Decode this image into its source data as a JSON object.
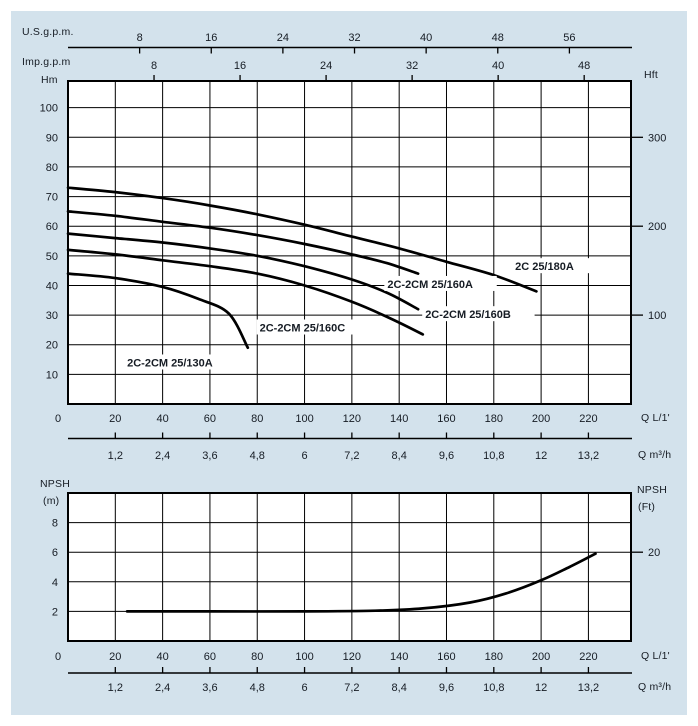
{
  "colors": {
    "panel_bg": "#d3e2ec",
    "plot_bg": "#ffffff",
    "line": "#000000",
    "text": "#161c24"
  },
  "labels": {
    "us_gpm": "U.S.g.p.m.",
    "imp_gpm": "Imp.g.p.m",
    "hm": "Hm",
    "hft": "Hft",
    "q_l1_top": "Q L/1'",
    "q_m3h_top": "Q m³/h",
    "npsh_left_1": "NPSH",
    "npsh_left_2": "(m)",
    "npsh_right_1": "NPSH",
    "npsh_right_2": "(Ft)",
    "q_l1_bottom": "Q L/1'",
    "q_m3h_bottom": "Q m³/h"
  },
  "chart_data": [
    {
      "type": "line",
      "title": "Pump head vs flow curves",
      "grid": true,
      "x_axis": {
        "label": "Q L/1'",
        "min": 0,
        "max": 238,
        "ticks": [
          0,
          20,
          40,
          60,
          80,
          100,
          120,
          140,
          160,
          180,
          200,
          220
        ]
      },
      "x_axis_m3h": {
        "label": "Q m³/h",
        "tick_labels": [
          "1,2",
          "2,4",
          "3,6",
          "4,8",
          "6",
          "7,2",
          "8,4",
          "9,6",
          "10,8",
          "12",
          "13,2"
        ],
        "tick_values": [
          1.2,
          2.4,
          3.6,
          4.8,
          6,
          7.2,
          8.4,
          9.6,
          10.8,
          12,
          13.2
        ],
        "liters_per_min_per_m3h": 16.6667
      },
      "x_axis_us_gpm": {
        "label": "U.S.g.p.m.",
        "ticks": [
          8,
          16,
          24,
          32,
          40,
          48,
          56
        ],
        "liters_per_min_per_unit": 3.785
      },
      "x_axis_imp_gpm": {
        "label": "Imp.g.p.m",
        "ticks": [
          8,
          16,
          24,
          32,
          40,
          48
        ],
        "liters_per_min_per_unit": 4.546
      },
      "y_axis": {
        "label": "Hm",
        "min": 0,
        "max": 109,
        "ticks": [
          10,
          20,
          30,
          40,
          50,
          60,
          70,
          80,
          90,
          100
        ]
      },
      "y_axis_ft": {
        "label": "Hft",
        "ticks": [
          {
            "label": "100",
            "at_m": 30
          },
          {
            "label": "200",
            "at_m": 60
          },
          {
            "label": "300",
            "at_m": 90
          }
        ]
      },
      "series": [
        {
          "name": "2C 25/180A",
          "points": [
            [
              0,
              73
            ],
            [
              20,
              71.5
            ],
            [
              40,
              69.5
            ],
            [
              60,
              67
            ],
            [
              80,
              64
            ],
            [
              100,
              60.5
            ],
            [
              120,
              56.5
            ],
            [
              140,
              52.5
            ],
            [
              160,
              48
            ],
            [
              180,
              43.5
            ],
            [
              198,
              38
            ]
          ],
          "label_pos": [
            189,
            45.5
          ]
        },
        {
          "name": "2C-2CM 25/160A",
          "points": [
            [
              0,
              65
            ],
            [
              20,
              63.5
            ],
            [
              40,
              61.5
            ],
            [
              60,
              59.5
            ],
            [
              80,
              57
            ],
            [
              100,
              54
            ],
            [
              120,
              50.5
            ],
            [
              135,
              47.5
            ],
            [
              148,
              44
            ]
          ],
          "label_pos": [
            135,
            39.5
          ]
        },
        {
          "name": "2C-2CM 25/160B",
          "points": [
            [
              0,
              57.5
            ],
            [
              20,
              56
            ],
            [
              40,
              54.5
            ],
            [
              60,
              52.5
            ],
            [
              80,
              50
            ],
            [
              100,
              46.5
            ],
            [
              120,
              42
            ],
            [
              135,
              37.5
            ],
            [
              148,
              32
            ]
          ],
          "label_pos": [
            151,
            29.3
          ]
        },
        {
          "name": "2C-2CM 25/160C",
          "points": [
            [
              0,
              52
            ],
            [
              20,
              50.5
            ],
            [
              40,
              48.5
            ],
            [
              60,
              46.5
            ],
            [
              80,
              44
            ],
            [
              100,
              40
            ],
            [
              120,
              34.5
            ],
            [
              136,
              29
            ],
            [
              150,
              23.5
            ]
          ],
          "label_pos": [
            81,
            24.8
          ]
        },
        {
          "name": "2C-2CM 25/130A",
          "points": [
            [
              0,
              44
            ],
            [
              20,
              42.5
            ],
            [
              40,
              39.5
            ],
            [
              55,
              35.5
            ],
            [
              68,
              30.5
            ],
            [
              76,
              19
            ]
          ],
          "label_pos": [
            25,
            13
          ]
        }
      ]
    },
    {
      "type": "line",
      "title": "NPSH vs flow curve",
      "grid": true,
      "x_axis": {
        "label": "Q L/1'",
        "min": 0,
        "max": 238,
        "ticks": [
          0,
          20,
          40,
          60,
          80,
          100,
          120,
          140,
          160,
          180,
          200,
          220
        ]
      },
      "x_axis_m3h": {
        "label": "Q m³/h",
        "tick_labels": [
          "1,2",
          "2,4",
          "3,6",
          "4,8",
          "6",
          "7,2",
          "8,4",
          "9,6",
          "10,8",
          "12",
          "13,2"
        ],
        "tick_values": [
          1.2,
          2.4,
          3.6,
          4.8,
          6,
          7.2,
          8.4,
          9.6,
          10.8,
          12,
          13.2
        ],
        "liters_per_min_per_m3h": 16.6667
      },
      "y_axis": {
        "label": "NPSH (m)",
        "min": 0,
        "max": 10,
        "ticks": [
          2,
          4,
          6,
          8
        ]
      },
      "y_axis_ft": {
        "label": "NPSH (Ft)",
        "ticks": [
          {
            "label": "20",
            "at_m": 6
          }
        ]
      },
      "series": [
        {
          "name": "NPSH",
          "points": [
            [
              25,
              2
            ],
            [
              60,
              2
            ],
            [
              100,
              2
            ],
            [
              130,
              2.05
            ],
            [
              150,
              2.2
            ],
            [
              170,
              2.6
            ],
            [
              185,
              3.2
            ],
            [
              200,
              4.1
            ],
            [
              212,
              5.0
            ],
            [
              223,
              5.9
            ]
          ]
        }
      ]
    }
  ]
}
